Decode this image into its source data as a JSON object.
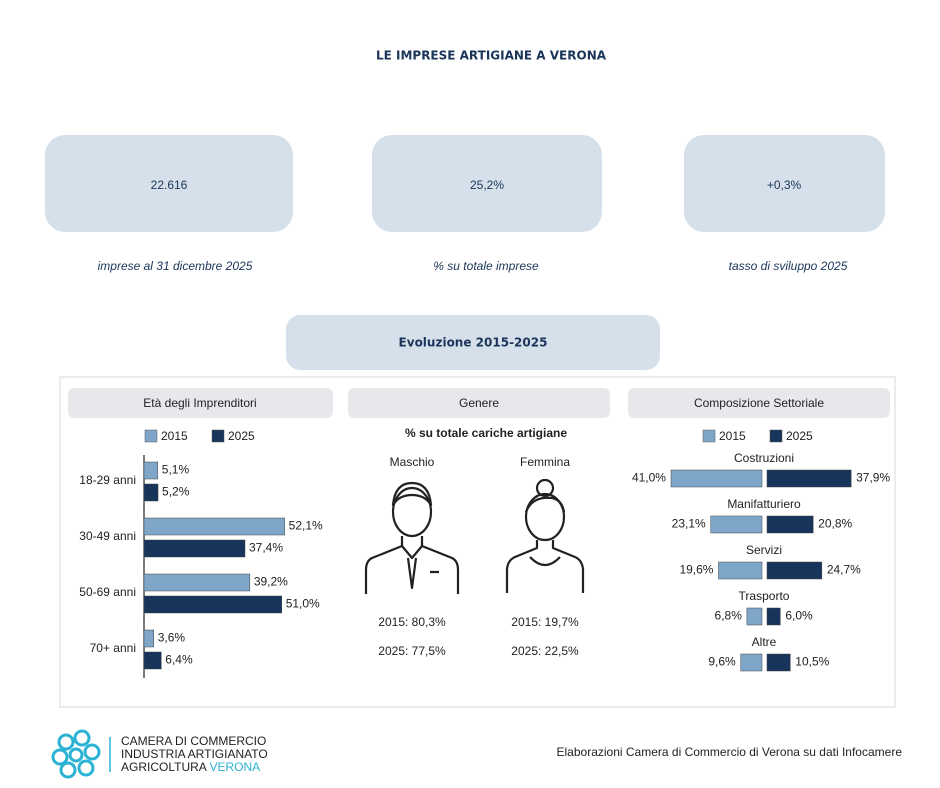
{
  "header": {
    "title": "LE IMPRESE ARTIGIANE A VERONA"
  },
  "kpis": [
    {
      "value": "22.616",
      "label": "imprese al 31 dicembre 2025"
    },
    {
      "value": "25,2%",
      "label": "% su totale imprese"
    },
    {
      "value": "+0,3%",
      "label": "tasso di sviluppo 2025"
    }
  ],
  "section": {
    "title": "Evoluzione 2015-2025"
  },
  "chart_data": [
    {
      "type": "bar",
      "orientation": "horizontal",
      "title": "Età degli Imprenditori",
      "categories": [
        "18-29 anni",
        "30-49 anni",
        "50-69 anni",
        "70+ anni"
      ],
      "series": [
        {
          "name": "2015",
          "color": "#7ea6c8",
          "values": [
            5.1,
            52.1,
            39.2,
            3.6
          ],
          "value_labels": [
            "5,1%",
            "52,1%",
            "39,2%",
            "3,6%"
          ]
        },
        {
          "name": "2025",
          "color": "#17345a",
          "values": [
            5.2,
            37.4,
            51.0,
            6.4
          ],
          "value_labels": [
            "5,2%",
            "37,4%",
            "51,0%",
            "6,4%"
          ]
        }
      ]
    },
    {
      "type": "diverging_bar",
      "title": "Composizione Settoriale",
      "categories": [
        "Costruzioni",
        "Manifatturiero",
        "Servizi",
        "Trasporto",
        "Altre"
      ],
      "series": [
        {
          "name": "2015",
          "color": "#7ea6c8",
          "values": [
            41.0,
            23.1,
            19.6,
            6.8,
            9.6
          ],
          "value_labels": [
            "41,0%",
            "23,1%",
            "19,6%",
            "6,8%",
            "9,6%"
          ]
        },
        {
          "name": "2025",
          "color": "#17345a",
          "values": [
            37.9,
            20.8,
            24.7,
            6.0,
            10.5
          ],
          "value_labels": [
            "37,9%",
            "20,8%",
            "24,7%",
            "6,0%",
            "10,5%"
          ]
        }
      ]
    }
  ],
  "gender": {
    "title": "Genere",
    "subtitle": "% su totale cariche artigiane",
    "groups": [
      {
        "label": "Maschio",
        "lines": [
          "2015: 80,3%",
          "2025: 77,5%"
        ]
      },
      {
        "label": "Femmina",
        "lines": [
          "2015: 19,7%",
          "2025: 22,5%"
        ]
      }
    ]
  },
  "footer": {
    "org": [
      "CAMERA DI COMMERCIO",
      "INDUSTRIA ARTIGIANATO",
      "AGRICOLTURA"
    ],
    "org_city": "VERONA",
    "credit": "Elaborazioni Camera di Commercio di Verona su dati Infocamere"
  }
}
